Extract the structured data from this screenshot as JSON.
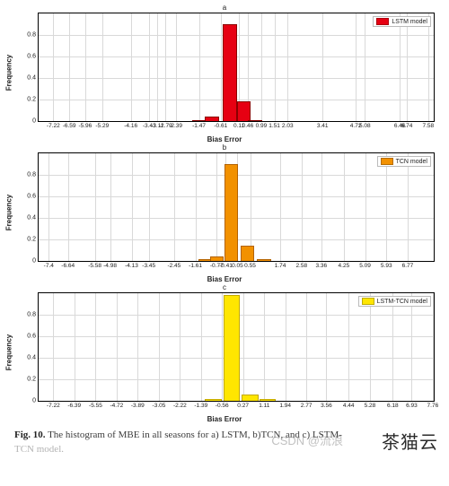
{
  "panels": [
    {
      "title": "a",
      "legend": "LSTM model",
      "color_fill": "#e60012",
      "color_edge": "#8b0000",
      "ylabel": "Frequency",
      "xlabel": "Bias Error",
      "ylim": [
        0,
        1.0
      ],
      "yticks": [
        0,
        0.2,
        0.4,
        0.6,
        0.8
      ],
      "xticks": [
        -7.22,
        -6.59,
        -5.96,
        -5.29,
        -4.16,
        -3.43,
        -3.11,
        -2.79,
        -2.39,
        -1.47,
        -0.61,
        0.11,
        0.46,
        0.99,
        1.51,
        2.03,
        3.41,
        4.72,
        5.08,
        6.46,
        6.74,
        7.58
      ],
      "bars": [
        {
          "center_x": -1.47,
          "h": 0.01
        },
        {
          "center_x": -0.95,
          "h": 0.04
        },
        {
          "center_x": -0.25,
          "h": 0.9
        },
        {
          "center_x": 0.3,
          "h": 0.18
        },
        {
          "center_x": 0.75,
          "h": 0.01
        }
      ],
      "bar_width": 0.55
    },
    {
      "title": "b",
      "legend": "TCN model",
      "color_fill": "#f29100",
      "color_edge": "#b36200",
      "ylabel": "Frequency",
      "xlabel": "Bias Error",
      "ylim": [
        0,
        1.0
      ],
      "yticks": [
        0,
        0.2,
        0.4,
        0.6,
        0.8
      ],
      "xticks": [
        -7.4,
        -6.64,
        -5.58,
        -4.98,
        -4.13,
        -3.45,
        -2.45,
        -1.61,
        -0.77,
        -0.41,
        0.05,
        0.55,
        1.74,
        2.58,
        3.36,
        4.25,
        5.09,
        5.93,
        6.77
      ],
      "bars": [
        {
          "center_x": -1.2,
          "h": 0.015
        },
        {
          "center_x": -0.77,
          "h": 0.04
        },
        {
          "center_x": -0.2,
          "h": 0.9
        },
        {
          "center_x": 0.45,
          "h": 0.14
        },
        {
          "center_x": 1.1,
          "h": 0.015
        }
      ],
      "bar_width": 0.55
    },
    {
      "title": "c",
      "legend": "LSTM-TCN model",
      "color_fill": "#ffe600",
      "color_edge": "#c2a800",
      "ylabel": "Frequency",
      "xlabel": "Bias Error",
      "ylim": [
        0,
        1.0
      ],
      "yticks": [
        0,
        0.2,
        0.4,
        0.6,
        0.8
      ],
      "xticks": [
        -7.22,
        -6.39,
        -5.55,
        -4.72,
        -3.89,
        -3.05,
        -2.22,
        -1.39,
        -0.56,
        0.27,
        1.11,
        1.94,
        2.77,
        3.56,
        4.44,
        5.28,
        6.18,
        6.93,
        7.76
      ],
      "bars": [
        {
          "center_x": -0.9,
          "h": 0.02
        },
        {
          "center_x": -0.18,
          "h": 0.985
        },
        {
          "center_x": 0.55,
          "h": 0.06
        },
        {
          "center_x": 1.25,
          "h": 0.015
        }
      ],
      "bar_width": 0.65
    }
  ],
  "xrange": [
    -7.8,
    7.8
  ],
  "caption_bold": "Fig. 10.",
  "caption_body": " The histogram of MBE in all seasons for a) LSTM, b)TCN, and c) LSTM-",
  "caption_fade": "TCN model.",
  "watermark_left": "CSDN @流浪",
  "watermark_right": "茶猫云"
}
